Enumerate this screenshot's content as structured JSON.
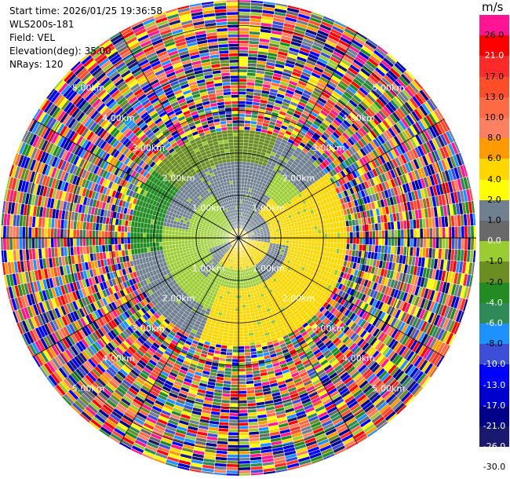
{
  "info": {
    "start_time": "Start time: 2026/01/25 19:36:58",
    "instrument": "WLS200s-181",
    "field": "Field: VEL",
    "elevation": "Elevation(deg): 35.00",
    "nrays": "NRays: 120"
  },
  "chart_data": {
    "type": "heatmap",
    "projection": "polar-ppi",
    "field": "VEL",
    "elevation_deg": 35.0,
    "nrays": 120,
    "range_rings_km": [
      1.0,
      2.0,
      3.0,
      4.0,
      5.0
    ],
    "range_labels": [
      "1.00km",
      "2.00km",
      "3.00km",
      "4.00km",
      "5.00km"
    ],
    "max_range_km": 5.6,
    "spokes_deg": [
      0,
      30,
      60,
      90,
      120,
      150,
      180,
      210,
      240,
      270,
      300,
      330
    ],
    "colorbar": {
      "unit": "m/s",
      "levels": [
        {
          "label": "26.0",
          "color": "#ff1493"
        },
        {
          "label": "21.0",
          "color": "#ff0000"
        },
        {
          "label": "17.0",
          "color": "#ff2b2b"
        },
        {
          "label": "13.0",
          "color": "#ff4d2a"
        },
        {
          "label": "10.0",
          "color": "#ff6a45"
        },
        {
          "label": "8.0",
          "color": "#ff8060"
        },
        {
          "label": "6.0",
          "color": "#ff9a00"
        },
        {
          "label": "4.0",
          "color": "#ffd700"
        },
        {
          "label": "2.0",
          "color": "#ffff00"
        },
        {
          "label": "1.0",
          "color": "#708090"
        },
        {
          "label": "0.0",
          "color": "#696969"
        },
        {
          "label": "-1.0",
          "color": "#9acd32"
        },
        {
          "label": "-2.0",
          "color": "#6b8e23"
        },
        {
          "label": "-4.0",
          "color": "#228b22"
        },
        {
          "label": "-6.0",
          "color": "#2e8b57"
        },
        {
          "label": "-8.0",
          "color": "#1e90ff"
        },
        {
          "label": "-10.0",
          "color": "#3d4fd6"
        },
        {
          "label": "-13.0",
          "color": "#0000ff"
        },
        {
          "label": "-17.0",
          "color": "#0000cd"
        },
        {
          "label": "-21.0",
          "color": "#00008b"
        },
        {
          "label": "-26.0",
          "color": "#191970"
        },
        {
          "label": "-30.0",
          "color": ""
        }
      ]
    },
    "inner_field_description": {
      "clean_range_km": 2.55,
      "pattern": "near-field coherent wind (grey/yellow/green) surrounded by noisy random velocities"
    }
  }
}
